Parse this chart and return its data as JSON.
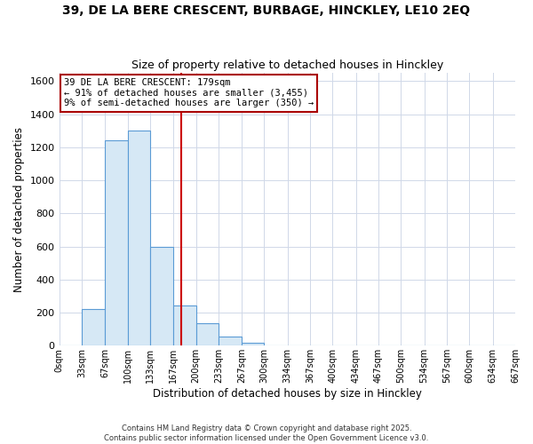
{
  "title_line1": "39, DE LA BERE CRESCENT, BURBAGE, HINCKLEY, LE10 2EQ",
  "title_line2": "Size of property relative to detached houses in Hinckley",
  "xlabel": "Distribution of detached houses by size in Hinckley",
  "ylabel": "Number of detached properties",
  "bin_edges": [
    0,
    33,
    67,
    100,
    133,
    167,
    200,
    233,
    267,
    300,
    334,
    367,
    400,
    434,
    467,
    500,
    534,
    567,
    600,
    634,
    667
  ],
  "bin_labels": [
    "0sqm",
    "33sqm",
    "67sqm",
    "100sqm",
    "133sqm",
    "167sqm",
    "200sqm",
    "233sqm",
    "267sqm",
    "300sqm",
    "334sqm",
    "367sqm",
    "400sqm",
    "434sqm",
    "467sqm",
    "500sqm",
    "534sqm",
    "567sqm",
    "600sqm",
    "634sqm",
    "667sqm"
  ],
  "counts": [
    0,
    220,
    1240,
    1300,
    600,
    245,
    135,
    55,
    20,
    0,
    0,
    0,
    0,
    0,
    0,
    0,
    0,
    0,
    0,
    0
  ],
  "property_size": 179,
  "vline_color": "#cc0000",
  "bar_face_color": "#d6e8f5",
  "bar_edge_color": "#5b9bd5",
  "annotation_line1": "39 DE LA BERE CRESCENT: 179sqm",
  "annotation_line2": "← 91% of detached houses are smaller (3,455)",
  "annotation_line3": "9% of semi-detached houses are larger (350) →",
  "ylim": [
    0,
    1650
  ],
  "yticks": [
    0,
    200,
    400,
    600,
    800,
    1000,
    1200,
    1400,
    1600
  ],
  "xlim_max": 667,
  "footer_line1": "Contains HM Land Registry data © Crown copyright and database right 2025.",
  "footer_line2": "Contains public sector information licensed under the Open Government Licence v3.0.",
  "bg_color": "#ffffff",
  "grid_color": "#d0d8e8",
  "annotation_box_color": "#ffffff",
  "annotation_box_edge": "#aa0000",
  "annotation_fontsize": 7.5,
  "title1_fontsize": 10,
  "title2_fontsize": 9
}
